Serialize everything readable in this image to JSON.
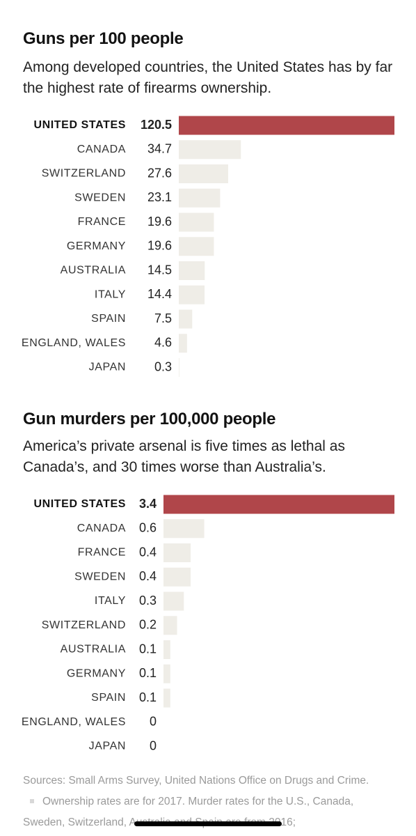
{
  "chart_data": [
    {
      "type": "bar",
      "title": "Guns per 100 people",
      "subtitle": "Among developed countries, the United States has by far the highest rate of firearms ownership.",
      "categories": [
        "UNITED STATES",
        "CANADA",
        "SWITZERLAND",
        "SWEDEN",
        "FRANCE",
        "GERMANY",
        "AUSTRALIA",
        "ITALY",
        "SPAIN",
        "ENGLAND, WALES",
        "JAPAN"
      ],
      "values": [
        120.5,
        34.7,
        27.6,
        23.1,
        19.6,
        19.6,
        14.5,
        14.4,
        7.5,
        4.6,
        0.3
      ],
      "colors": [
        "#b0464a",
        "#efede7",
        "#efede7",
        "#efede7",
        "#efede7",
        "#efede7",
        "#efede7",
        "#efede7",
        "#efede7",
        "#efede7",
        "#efede7"
      ]
    },
    {
      "type": "bar",
      "title": "Gun murders per 100,000 people",
      "subtitle": "America’s private arsenal is five times as lethal as Canada’s, and 30 times worse than Australia’s.",
      "categories": [
        "UNITED STATES",
        "CANADA",
        "FRANCE",
        "SWEDEN",
        "ITALY",
        "SWITZERLAND",
        "AUSTRALIA",
        "GERMANY",
        "SPAIN",
        "ENGLAND, WALES",
        "JAPAN"
      ],
      "values": [
        3.4,
        0.6,
        0.4,
        0.4,
        0.3,
        0.2,
        0.1,
        0.1,
        0.1,
        0,
        0
      ],
      "colors": [
        "#b0464a",
        "#efede7",
        "#efede7",
        "#efede7",
        "#efede7",
        "#efede7",
        "#efede7",
        "#efede7",
        "#efede7",
        "#efede7",
        "#efede7"
      ]
    }
  ],
  "footer": {
    "sources": "Sources: Small Arms Survey, United Nations Office on Drugs and Crime.",
    "note": "Ownership rates are for 2017. Murder rates for the U.S., Canada, Sweden, Switzerland, Australia and Spain are from 2016;"
  }
}
